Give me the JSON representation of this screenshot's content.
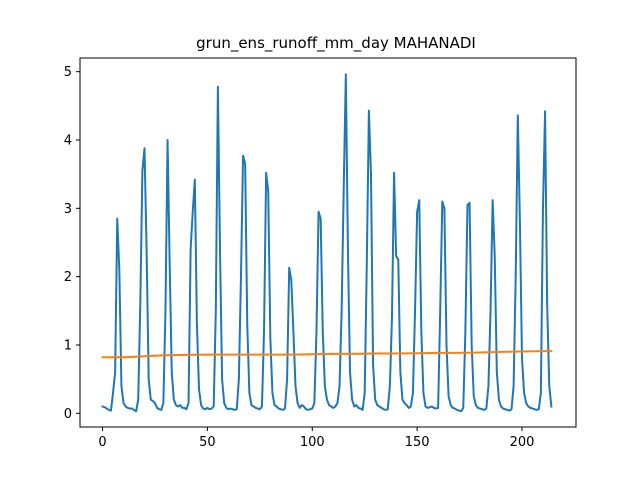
{
  "chart_data": {
    "type": "line",
    "title": "grun_ens_runoff_mm_day MAHANADI",
    "xlabel": "",
    "ylabel": "",
    "xlim": [
      -10.75,
      225.75
    ],
    "ylim": [
      -0.2,
      5.2
    ],
    "xticks": [
      0,
      50,
      100,
      150,
      200
    ],
    "yticks": [
      0,
      1,
      2,
      3,
      4,
      5
    ],
    "grid": false,
    "legend": "none",
    "series": [
      {
        "color": "#1f77b4",
        "points": [
          [
            0,
            0.1
          ],
          [
            1,
            0.09
          ],
          [
            2,
            0.07
          ],
          [
            3,
            0.05
          ],
          [
            4,
            0.04
          ],
          [
            5,
            0.3
          ],
          [
            6,
            0.6
          ],
          [
            7,
            2.85
          ],
          [
            8,
            2.1
          ],
          [
            9,
            0.4
          ],
          [
            10,
            0.15
          ],
          [
            11,
            0.1
          ],
          [
            12,
            0.08
          ],
          [
            13,
            0.07
          ],
          [
            14,
            0.07
          ],
          [
            15,
            0.05
          ],
          [
            16,
            0.03
          ],
          [
            17,
            0.2
          ],
          [
            18,
            1.6
          ],
          [
            19,
            3.55
          ],
          [
            20,
            3.88
          ],
          [
            21,
            2.4
          ],
          [
            22,
            0.5
          ],
          [
            23,
            0.2
          ],
          [
            24,
            0.18
          ],
          [
            25,
            0.15
          ],
          [
            26,
            0.08
          ],
          [
            27,
            0.06
          ],
          [
            28,
            0.05
          ],
          [
            29,
            0.15
          ],
          [
            30,
            1.5
          ],
          [
            31,
            4.0
          ],
          [
            32,
            2.2
          ],
          [
            33,
            0.6
          ],
          [
            34,
            0.2
          ],
          [
            35,
            0.12
          ],
          [
            36,
            0.1
          ],
          [
            37,
            0.12
          ],
          [
            38,
            0.08
          ],
          [
            39,
            0.08
          ],
          [
            40,
            0.06
          ],
          [
            41,
            0.15
          ],
          [
            42,
            2.4
          ],
          [
            43,
            2.95
          ],
          [
            44,
            3.42
          ],
          [
            45,
            1.3
          ],
          [
            46,
            0.35
          ],
          [
            47,
            0.12
          ],
          [
            48,
            0.07
          ],
          [
            49,
            0.06
          ],
          [
            50,
            0.08
          ],
          [
            51,
            0.06
          ],
          [
            52,
            0.07
          ],
          [
            53,
            0.1
          ],
          [
            54,
            1.5
          ],
          [
            55,
            4.78
          ],
          [
            56,
            2.4
          ],
          [
            57,
            0.5
          ],
          [
            58,
            0.15
          ],
          [
            59,
            0.08
          ],
          [
            60,
            0.06
          ],
          [
            61,
            0.07
          ],
          [
            62,
            0.06
          ],
          [
            63,
            0.05
          ],
          [
            64,
            0.06
          ],
          [
            65,
            0.5
          ],
          [
            66,
            2.0
          ],
          [
            67,
            3.77
          ],
          [
            68,
            3.65
          ],
          [
            69,
            1.3
          ],
          [
            70,
            0.3
          ],
          [
            71,
            0.12
          ],
          [
            72,
            0.1
          ],
          [
            73,
            0.08
          ],
          [
            74,
            0.07
          ],
          [
            75,
            0.06
          ],
          [
            76,
            0.1
          ],
          [
            77,
            1.2
          ],
          [
            78,
            3.52
          ],
          [
            79,
            3.25
          ],
          [
            80,
            1.1
          ],
          [
            81,
            0.3
          ],
          [
            82,
            0.12
          ],
          [
            83,
            0.1
          ],
          [
            84,
            0.07
          ],
          [
            85,
            0.06
          ],
          [
            86,
            0.05
          ],
          [
            87,
            0.07
          ],
          [
            88,
            0.5
          ],
          [
            89,
            2.13
          ],
          [
            90,
            1.95
          ],
          [
            91,
            1.2
          ],
          [
            92,
            0.4
          ],
          [
            93,
            0.15
          ],
          [
            94,
            0.08
          ],
          [
            95,
            0.12
          ],
          [
            96,
            0.1
          ],
          [
            97,
            0.06
          ],
          [
            98,
            0.05
          ],
          [
            99,
            0.06
          ],
          [
            100,
            0.07
          ],
          [
            101,
            0.15
          ],
          [
            102,
            1.2
          ],
          [
            103,
            2.95
          ],
          [
            104,
            2.85
          ],
          [
            105,
            1.2
          ],
          [
            106,
            0.4
          ],
          [
            107,
            0.2
          ],
          [
            108,
            0.12
          ],
          [
            109,
            0.1
          ],
          [
            110,
            0.08
          ],
          [
            111,
            0.1
          ],
          [
            112,
            0.15
          ],
          [
            113,
            0.4
          ],
          [
            114,
            1.5
          ],
          [
            115,
            3.3
          ],
          [
            116,
            4.96
          ],
          [
            117,
            2.4
          ],
          [
            118,
            0.6
          ],
          [
            119,
            0.2
          ],
          [
            120,
            0.1
          ],
          [
            121,
            0.12
          ],
          [
            122,
            0.08
          ],
          [
            123,
            0.07
          ],
          [
            124,
            0.05
          ],
          [
            125,
            0.3
          ],
          [
            126,
            2.2
          ],
          [
            127,
            4.43
          ],
          [
            128,
            3.5
          ],
          [
            129,
            0.7
          ],
          [
            130,
            0.2
          ],
          [
            131,
            0.12
          ],
          [
            132,
            0.1
          ],
          [
            133,
            0.08
          ],
          [
            134,
            0.06
          ],
          [
            135,
            0.05
          ],
          [
            136,
            0.06
          ],
          [
            137,
            0.4
          ],
          [
            138,
            1.4
          ],
          [
            139,
            3.52
          ],
          [
            140,
            2.3
          ],
          [
            141,
            2.25
          ],
          [
            142,
            0.6
          ],
          [
            143,
            0.2
          ],
          [
            144,
            0.15
          ],
          [
            145,
            0.12
          ],
          [
            146,
            0.08
          ],
          [
            147,
            0.1
          ],
          [
            148,
            0.3
          ],
          [
            149,
            1.5
          ],
          [
            150,
            2.95
          ],
          [
            151,
            3.12
          ],
          [
            152,
            1.2
          ],
          [
            153,
            0.3
          ],
          [
            154,
            0.1
          ],
          [
            155,
            0.08
          ],
          [
            156,
            0.09
          ],
          [
            157,
            0.1
          ],
          [
            158,
            0.08
          ],
          [
            159,
            0.07
          ],
          [
            160,
            0.08
          ],
          [
            161,
            1.5
          ],
          [
            162,
            3.1
          ],
          [
            163,
            3.0
          ],
          [
            164,
            1.0
          ],
          [
            165,
            0.25
          ],
          [
            166,
            0.12
          ],
          [
            167,
            0.08
          ],
          [
            168,
            0.07
          ],
          [
            169,
            0.05
          ],
          [
            170,
            0.04
          ],
          [
            171,
            0.03
          ],
          [
            172,
            0.08
          ],
          [
            173,
            1.2
          ],
          [
            174,
            3.05
          ],
          [
            175,
            3.08
          ],
          [
            176,
            1.0
          ],
          [
            177,
            0.25
          ],
          [
            178,
            0.12
          ],
          [
            179,
            0.08
          ],
          [
            180,
            0.07
          ],
          [
            181,
            0.06
          ],
          [
            182,
            0.05
          ],
          [
            183,
            0.07
          ],
          [
            184,
            0.4
          ],
          [
            185,
            1.5
          ],
          [
            186,
            3.12
          ],
          [
            187,
            2.3
          ],
          [
            188,
            0.6
          ],
          [
            189,
            0.2
          ],
          [
            190,
            0.1
          ],
          [
            191,
            0.07
          ],
          [
            192,
            0.06
          ],
          [
            193,
            0.05
          ],
          [
            194,
            0.04
          ],
          [
            195,
            0.06
          ],
          [
            196,
            0.4
          ],
          [
            197,
            2.0
          ],
          [
            198,
            4.36
          ],
          [
            199,
            2.8
          ],
          [
            200,
            0.8
          ],
          [
            201,
            0.3
          ],
          [
            202,
            0.15
          ],
          [
            203,
            0.1
          ],
          [
            204,
            0.08
          ],
          [
            205,
            0.07
          ],
          [
            206,
            0.06
          ],
          [
            207,
            0.05
          ],
          [
            208,
            0.06
          ],
          [
            209,
            0.3
          ],
          [
            210,
            3.0
          ],
          [
            211,
            4.42
          ],
          [
            212,
            1.6
          ],
          [
            213,
            0.4
          ],
          [
            214,
            0.1
          ]
        ]
      },
      {
        "color": "#ff7f0e",
        "points": [
          [
            0,
            0.82
          ],
          [
            10,
            0.82
          ],
          [
            20,
            0.835
          ],
          [
            30,
            0.85
          ],
          [
            40,
            0.855
          ],
          [
            50,
            0.86
          ],
          [
            60,
            0.86
          ],
          [
            70,
            0.86
          ],
          [
            80,
            0.86
          ],
          [
            90,
            0.86
          ],
          [
            100,
            0.865
          ],
          [
            110,
            0.87
          ],
          [
            120,
            0.87
          ],
          [
            130,
            0.875
          ],
          [
            140,
            0.875
          ],
          [
            150,
            0.88
          ],
          [
            160,
            0.885
          ],
          [
            170,
            0.885
          ],
          [
            180,
            0.89
          ],
          [
            190,
            0.9
          ],
          [
            200,
            0.905
          ],
          [
            210,
            0.91
          ],
          [
            214,
            0.91
          ]
        ]
      }
    ]
  }
}
